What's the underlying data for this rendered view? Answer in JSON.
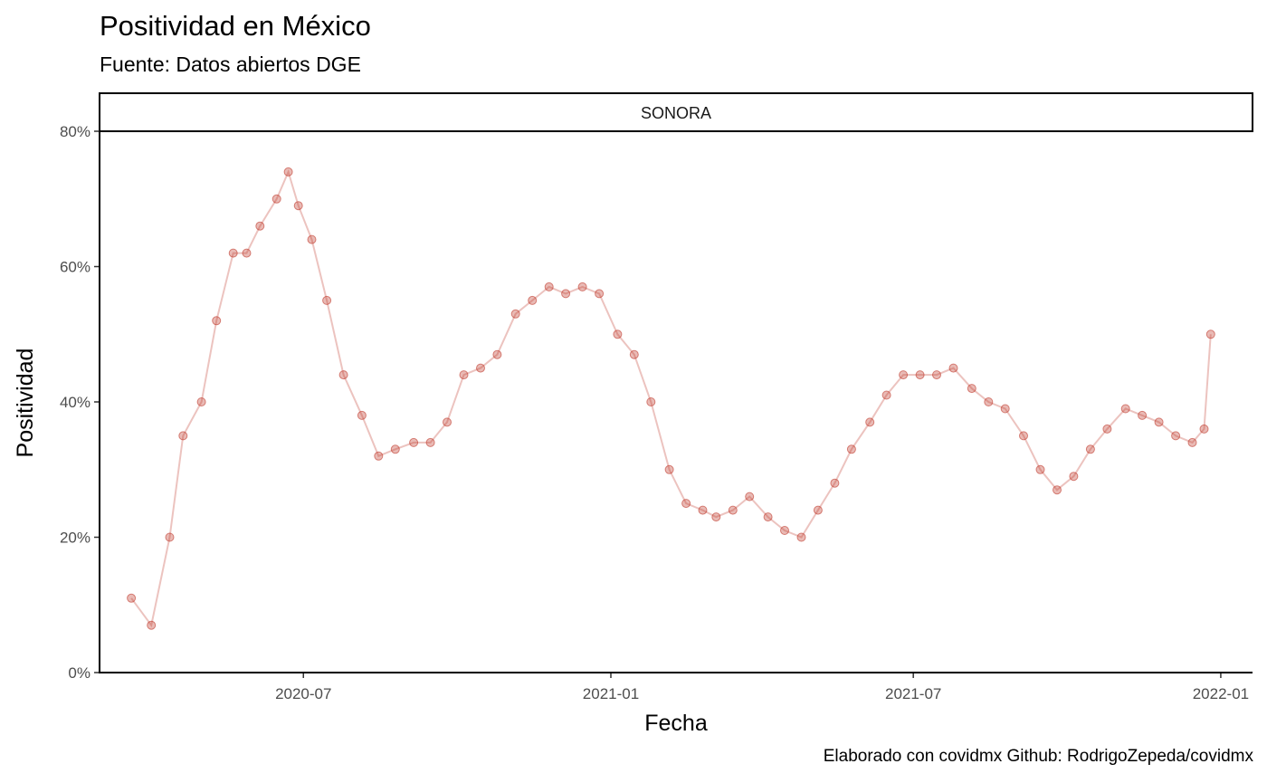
{
  "title": "Positividad en México",
  "subtitle": "Fuente: Datos abiertos DGE",
  "caption": "Elaborado con covidmx Github: RodrigoZepeda/covidmx",
  "chart_data": {
    "type": "line",
    "title": "Positividad en México",
    "subtitle": "Fuente: Datos abiertos DGE",
    "facet": "SONORA",
    "xlabel": "Fecha",
    "ylabel": "Positividad",
    "x_ticks": [
      "2020-07",
      "2021-01",
      "2021-07",
      "2022-01"
    ],
    "y_ticks": [
      "0%",
      "20%",
      "40%",
      "60%",
      "80%"
    ],
    "xlim": [
      "2020-03-01",
      "2022-01-20"
    ],
    "ylim": [
      0,
      0.8
    ],
    "grid": false,
    "colors": {
      "series": "#C0392B"
    },
    "series": [
      {
        "values": [
          [
            "2020-03-20",
            0.11
          ],
          [
            "2020-04-01",
            0.07
          ],
          [
            "2020-04-12",
            0.2
          ],
          [
            "2020-04-20",
            0.35
          ],
          [
            "2020-05-01",
            0.4
          ],
          [
            "2020-05-10",
            0.52
          ],
          [
            "2020-05-20",
            0.62
          ],
          [
            "2020-05-28",
            0.62
          ],
          [
            "2020-06-05",
            0.66
          ],
          [
            "2020-06-15",
            0.7
          ],
          [
            "2020-06-22",
            0.74
          ],
          [
            "2020-06-28",
            0.69
          ],
          [
            "2020-07-06",
            0.64
          ],
          [
            "2020-07-15",
            0.55
          ],
          [
            "2020-07-25",
            0.44
          ],
          [
            "2020-08-05",
            0.38
          ],
          [
            "2020-08-15",
            0.32
          ],
          [
            "2020-08-25",
            0.33
          ],
          [
            "2020-09-05",
            0.34
          ],
          [
            "2020-09-15",
            0.34
          ],
          [
            "2020-09-25",
            0.37
          ],
          [
            "2020-10-05",
            0.44
          ],
          [
            "2020-10-15",
            0.45
          ],
          [
            "2020-10-25",
            0.47
          ],
          [
            "2020-11-05",
            0.53
          ],
          [
            "2020-11-15",
            0.55
          ],
          [
            "2020-11-25",
            0.57
          ],
          [
            "2020-12-05",
            0.56
          ],
          [
            "2020-12-15",
            0.57
          ],
          [
            "2020-12-25",
            0.56
          ],
          [
            "2021-01-05",
            0.5
          ],
          [
            "2021-01-15",
            0.47
          ],
          [
            "2021-01-25",
            0.4
          ],
          [
            "2021-02-05",
            0.3
          ],
          [
            "2021-02-15",
            0.25
          ],
          [
            "2021-02-25",
            0.24
          ],
          [
            "2021-03-05",
            0.23
          ],
          [
            "2021-03-15",
            0.24
          ],
          [
            "2021-03-25",
            0.26
          ],
          [
            "2021-04-05",
            0.23
          ],
          [
            "2021-04-15",
            0.21
          ],
          [
            "2021-04-25",
            0.2
          ],
          [
            "2021-05-05",
            0.24
          ],
          [
            "2021-05-15",
            0.28
          ],
          [
            "2021-05-25",
            0.33
          ],
          [
            "2021-06-05",
            0.37
          ],
          [
            "2021-06-15",
            0.41
          ],
          [
            "2021-06-25",
            0.44
          ],
          [
            "2021-07-05",
            0.44
          ],
          [
            "2021-07-15",
            0.44
          ],
          [
            "2021-07-25",
            0.45
          ],
          [
            "2021-08-05",
            0.42
          ],
          [
            "2021-08-15",
            0.4
          ],
          [
            "2021-08-25",
            0.39
          ],
          [
            "2021-09-05",
            0.35
          ],
          [
            "2021-09-15",
            0.3
          ],
          [
            "2021-09-25",
            0.27
          ],
          [
            "2021-10-05",
            0.29
          ],
          [
            "2021-10-15",
            0.33
          ],
          [
            "2021-10-25",
            0.36
          ],
          [
            "2021-11-05",
            0.39
          ],
          [
            "2021-11-15",
            0.38
          ],
          [
            "2021-11-25",
            0.37
          ],
          [
            "2021-12-05",
            0.35
          ],
          [
            "2021-12-15",
            0.34
          ],
          [
            "2021-12-22",
            0.36
          ],
          [
            "2021-12-26",
            0.5
          ]
        ]
      }
    ]
  }
}
